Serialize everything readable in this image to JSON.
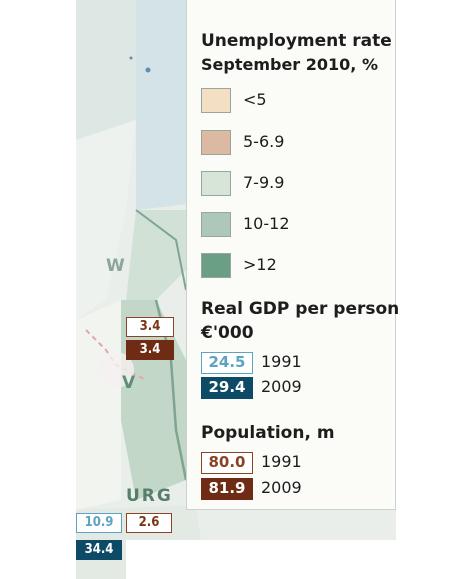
{
  "map": {
    "letters": {
      "w": "W",
      "v": "V",
      "urg": "URG"
    },
    "boxes": {
      "left_outline_brown": "3.4",
      "left_filled_brown": "3.4",
      "bottom_outline_blue": "10.9",
      "bottom_outline_brown": "2.6",
      "bottom_filled_blue": "34.4"
    }
  },
  "legend": {
    "unemployment": {
      "title_line1": "Unemployment rate",
      "title_line2": "September 2010, %",
      "items": [
        {
          "label": "<5",
          "color": "#f2dfc4"
        },
        {
          "label": "5-6.9",
          "color": "#dcb9a3"
        },
        {
          "label": "7-9.9",
          "color": "#d7e5d9"
        },
        {
          "label": "10-12",
          "color": "#adc8b8"
        },
        {
          "label": ">12",
          "color": "#6a9f86"
        }
      ]
    },
    "gdp": {
      "title_line1": "Real GDP per person",
      "title_line2": "€'000",
      "items": [
        {
          "value": "24.5",
          "year": "1991",
          "style": "outline",
          "color": "#5ea3c0"
        },
        {
          "value": "29.4",
          "year": "2009",
          "style": "filled",
          "color": "#0d4a66"
        }
      ]
    },
    "population": {
      "title": "Population, m",
      "items": [
        {
          "value": "80.0",
          "year": "1991",
          "style": "outline",
          "color": "#8a4325"
        },
        {
          "value": "81.9",
          "year": "2009",
          "style": "filled",
          "color": "#6f2b13"
        }
      ]
    }
  }
}
